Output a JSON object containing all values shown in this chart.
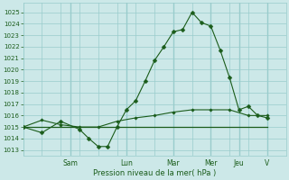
{
  "background_color": "#cce8e8",
  "grid_color": "#99cccc",
  "line_color": "#1a5c1a",
  "xlabel": "Pression niveau de la mer( hPa )",
  "ylim_min": 1012.5,
  "ylim_max": 1025.8,
  "yticks": [
    1013,
    1014,
    1015,
    1016,
    1017,
    1018,
    1019,
    1020,
    1021,
    1022,
    1023,
    1024,
    1025
  ],
  "day_labels": [
    "Sam",
    "Lun",
    "Mar",
    "Mer",
    "Jeu",
    "V"
  ],
  "xlim_min": 0,
  "xlim_max": 14,
  "line1_x": [
    0,
    1,
    2,
    3,
    3.5,
    4,
    4.5,
    5,
    5.5,
    6,
    6.5,
    7,
    7.5,
    8,
    8.5,
    9,
    9.5,
    10,
    10.5,
    11,
    11.5,
    12,
    12.5,
    13
  ],
  "line1_y": [
    1015.0,
    1014.5,
    1015.5,
    1014.8,
    1014.0,
    1013.3,
    1013.3,
    1015.0,
    1016.5,
    1017.3,
    1019.0,
    1020.8,
    1022.0,
    1023.3,
    1023.5,
    1025.0,
    1024.1,
    1023.8,
    1021.7,
    1019.3,
    1016.5,
    1016.8,
    1016.0,
    1015.8
  ],
  "line2_x": [
    0,
    1,
    2,
    3,
    4,
    5,
    6,
    7,
    8,
    9,
    10,
    11,
    12,
    13
  ],
  "line2_y": [
    1015.0,
    1015.6,
    1015.2,
    1015.0,
    1015.0,
    1015.5,
    1015.8,
    1016.0,
    1016.3,
    1016.5,
    1016.5,
    1016.5,
    1016.0,
    1016.0
  ],
  "line3_x": [
    0,
    13
  ],
  "line3_y": [
    1015.0,
    1015.0
  ],
  "day_x": [
    2.5,
    5.5,
    8.0,
    10.0,
    11.5,
    13.0
  ]
}
